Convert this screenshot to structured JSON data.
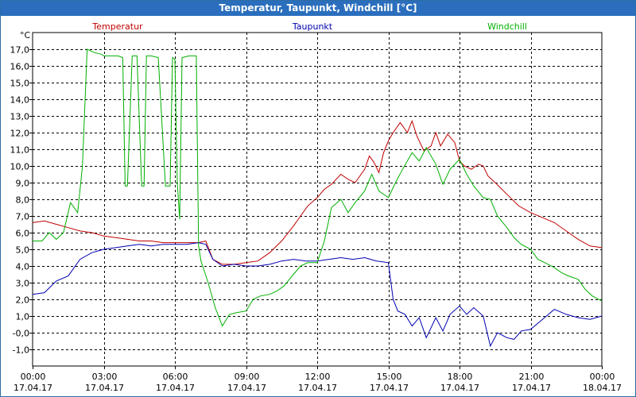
{
  "window": {
    "title": "Temperatur, Taupunkt, Windchill [°C]"
  },
  "colors": {
    "temperatur": "#c00000",
    "taupunkt": "#0000b0",
    "windchill": "#00b000",
    "grid": "#000000",
    "axis": "#000000",
    "titlebar": "#2a6ebd"
  },
  "chart_data": {
    "type": "line",
    "title": "Temperatur, Taupunkt, Windchill [°C]",
    "ylabel": "°C",
    "xlabel": "",
    "ylim": [
      -2.0,
      18.0
    ],
    "xlim": [
      0,
      24
    ],
    "y_ticks": [
      -1.0,
      0.0,
      1.0,
      2.0,
      3.0,
      4.0,
      5.0,
      6.0,
      7.0,
      8.0,
      9.0,
      10.0,
      11.0,
      12.0,
      13.0,
      14.0,
      15.0,
      16.0,
      17.0
    ],
    "y_tick_labels": [
      "-1,0",
      "-0,0",
      "1,0",
      "2,0",
      "3,0",
      "4,0",
      "5,0",
      "6,0",
      "7,0",
      "8,0",
      "9,0",
      "10,0",
      "11,0",
      "12,0",
      "13,0",
      "14,0",
      "15,0",
      "16,0",
      "17,0"
    ],
    "x_ticks": [
      {
        "h": 0,
        "time": "00:00",
        "date": "17.04.17"
      },
      {
        "h": 3,
        "time": "03:00",
        "date": "17.04.17"
      },
      {
        "h": 6,
        "time": "06:00",
        "date": "17.04.17"
      },
      {
        "h": 9,
        "time": "09:00",
        "date": "17.04.17"
      },
      {
        "h": 12,
        "time": "12:00",
        "date": "17.04.17"
      },
      {
        "h": 15,
        "time": "15:00",
        "date": "17.04.17"
      },
      {
        "h": 18,
        "time": "18:00",
        "date": "17.04.17"
      },
      {
        "h": 21,
        "time": "21:00",
        "date": "17.04.17"
      },
      {
        "h": 24,
        "time": "00:00",
        "date": "18.04.17"
      }
    ],
    "grid": true,
    "legend_position": "top",
    "series": [
      {
        "name": "Temperatur",
        "color": "#c00000",
        "x": [
          0.0,
          0.5,
          1.0,
          1.5,
          2.0,
          2.5,
          3.0,
          3.5,
          4.0,
          4.5,
          5.0,
          5.5,
          6.0,
          6.5,
          7.0,
          7.3,
          7.6,
          8.0,
          8.5,
          9.0,
          9.5,
          10.0,
          10.5,
          11.0,
          11.3,
          11.6,
          12.0,
          12.3,
          12.6,
          13.0,
          13.3,
          13.6,
          14.0,
          14.2,
          14.4,
          14.6,
          14.8,
          15.0,
          15.2,
          15.5,
          15.8,
          16.0,
          16.2,
          16.5,
          16.8,
          17.0,
          17.2,
          17.5,
          17.8,
          18.0,
          18.2,
          18.5,
          18.8,
          19.0,
          19.2,
          19.5,
          20.0,
          20.5,
          21.0,
          21.5,
          22.0,
          22.5,
          23.0,
          23.5,
          24.0
        ],
        "y": [
          6.6,
          6.7,
          6.5,
          6.3,
          6.1,
          6.0,
          5.8,
          5.7,
          5.6,
          5.5,
          5.5,
          5.4,
          5.4,
          5.4,
          5.4,
          5.5,
          4.4,
          4.1,
          4.1,
          4.2,
          4.3,
          4.8,
          5.5,
          6.4,
          7.0,
          7.6,
          8.1,
          8.6,
          8.9,
          9.5,
          9.2,
          9.0,
          9.8,
          10.6,
          10.2,
          9.6,
          10.8,
          11.5,
          12.0,
          12.6,
          12.0,
          12.7,
          11.8,
          10.9,
          11.2,
          12.0,
          11.2,
          11.9,
          11.4,
          10.3,
          10.0,
          9.8,
          10.1,
          10.0,
          9.4,
          9.0,
          8.3,
          7.6,
          7.2,
          6.9,
          6.6,
          6.1,
          5.6,
          5.2,
          5.1
        ]
      },
      {
        "name": "Taupunkt",
        "color": "#0000b0",
        "x": [
          0.0,
          0.5,
          1.0,
          1.5,
          2.0,
          2.5,
          3.0,
          3.5,
          4.0,
          4.5,
          5.0,
          5.5,
          6.0,
          6.5,
          7.0,
          7.3,
          7.6,
          8.0,
          8.5,
          9.0,
          9.5,
          10.0,
          10.5,
          11.0,
          11.5,
          12.0,
          12.5,
          13.0,
          13.5,
          14.0,
          14.5,
          15.0,
          15.2,
          15.4,
          15.7,
          16.0,
          16.3,
          16.6,
          17.0,
          17.3,
          17.6,
          18.0,
          18.3,
          18.6,
          19.0,
          19.3,
          19.6,
          20.0,
          20.3,
          20.6,
          21.0,
          21.5,
          22.0,
          22.5,
          23.0,
          23.5,
          24.0
        ],
        "y": [
          2.3,
          2.4,
          3.1,
          3.4,
          4.4,
          4.8,
          5.0,
          5.1,
          5.2,
          5.3,
          5.2,
          5.3,
          5.3,
          5.3,
          5.4,
          5.3,
          4.4,
          4.0,
          4.1,
          4.0,
          4.0,
          4.1,
          4.3,
          4.4,
          4.3,
          4.3,
          4.4,
          4.5,
          4.4,
          4.5,
          4.3,
          4.2,
          2.0,
          1.3,
          1.1,
          0.4,
          0.9,
          -0.3,
          0.9,
          0.1,
          1.1,
          1.6,
          1.1,
          1.5,
          1.0,
          -0.8,
          0.0,
          -0.3,
          -0.4,
          0.1,
          0.2,
          0.8,
          1.4,
          1.1,
          0.9,
          0.8,
          1.0
        ]
      },
      {
        "name": "Windchill",
        "color": "#00b000",
        "x": [
          0.0,
          0.4,
          0.7,
          1.0,
          1.3,
          1.6,
          1.9,
          2.1,
          2.3,
          2.6,
          2.9,
          3.0,
          3.3,
          3.6,
          3.8,
          3.9,
          4.0,
          4.2,
          4.4,
          4.6,
          4.7,
          4.8,
          4.9,
          5.0,
          5.3,
          5.6,
          5.8,
          5.9,
          6.0,
          6.1,
          6.2,
          6.3,
          6.6,
          6.9,
          7.0,
          7.1,
          7.4,
          7.7,
          8.0,
          8.3,
          8.6,
          9.0,
          9.3,
          9.6,
          10.0,
          10.3,
          10.6,
          11.0,
          11.3,
          11.6,
          12.0,
          12.3,
          12.6,
          13.0,
          13.3,
          13.6,
          14.0,
          14.3,
          14.6,
          15.0,
          15.3,
          15.6,
          16.0,
          16.3,
          16.6,
          17.0,
          17.3,
          17.6,
          18.0,
          18.3,
          18.6,
          19.0,
          19.3,
          19.6,
          20.0,
          20.3,
          20.6,
          21.0,
          21.3,
          21.6,
          22.0,
          22.3,
          22.6,
          23.0,
          23.3,
          23.6,
          24.0
        ],
        "y": [
          5.5,
          5.5,
          6.0,
          5.6,
          6.0,
          7.8,
          7.2,
          10.0,
          17.0,
          16.8,
          16.7,
          16.6,
          16.6,
          16.6,
          16.5,
          8.8,
          8.8,
          16.6,
          16.6,
          8.8,
          8.8,
          16.6,
          16.6,
          16.6,
          16.5,
          8.8,
          8.8,
          16.5,
          16.4,
          9.0,
          6.8,
          16.5,
          16.6,
          16.6,
          5.2,
          4.3,
          3.0,
          1.5,
          0.4,
          1.1,
          1.2,
          1.3,
          2.0,
          2.2,
          2.3,
          2.5,
          2.8,
          3.5,
          4.0,
          4.2,
          4.2,
          5.5,
          7.5,
          8.0,
          7.2,
          7.8,
          8.5,
          9.5,
          8.5,
          8.1,
          9.0,
          9.8,
          10.8,
          10.3,
          11.1,
          10.1,
          8.9,
          9.8,
          10.4,
          9.5,
          8.8,
          8.1,
          8.0,
          7.0,
          6.3,
          5.7,
          5.3,
          5.0,
          4.4,
          4.2,
          3.9,
          3.6,
          3.4,
          3.2,
          2.6,
          2.2,
          1.9
        ]
      }
    ]
  }
}
